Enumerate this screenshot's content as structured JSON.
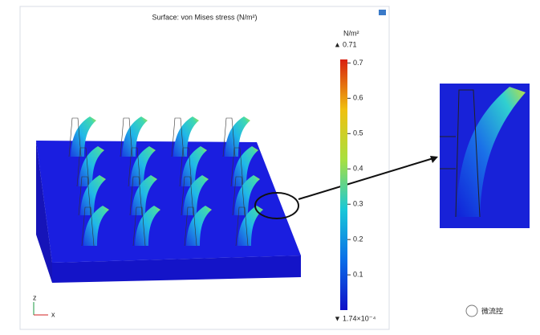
{
  "plot": {
    "title": "Surface: von Mises stress (N/m²)",
    "colorbar": {
      "unit": "N/m²",
      "max": 0.71,
      "min": {
        "value": 0.000174,
        "label": "1.74×10⁻⁴"
      },
      "ticks": [
        0.1,
        0.2,
        0.3,
        0.4,
        0.5,
        0.6,
        0.7
      ]
    },
    "axes": {
      "z": "z",
      "x": "x"
    }
  },
  "watermark": "微流控"
}
